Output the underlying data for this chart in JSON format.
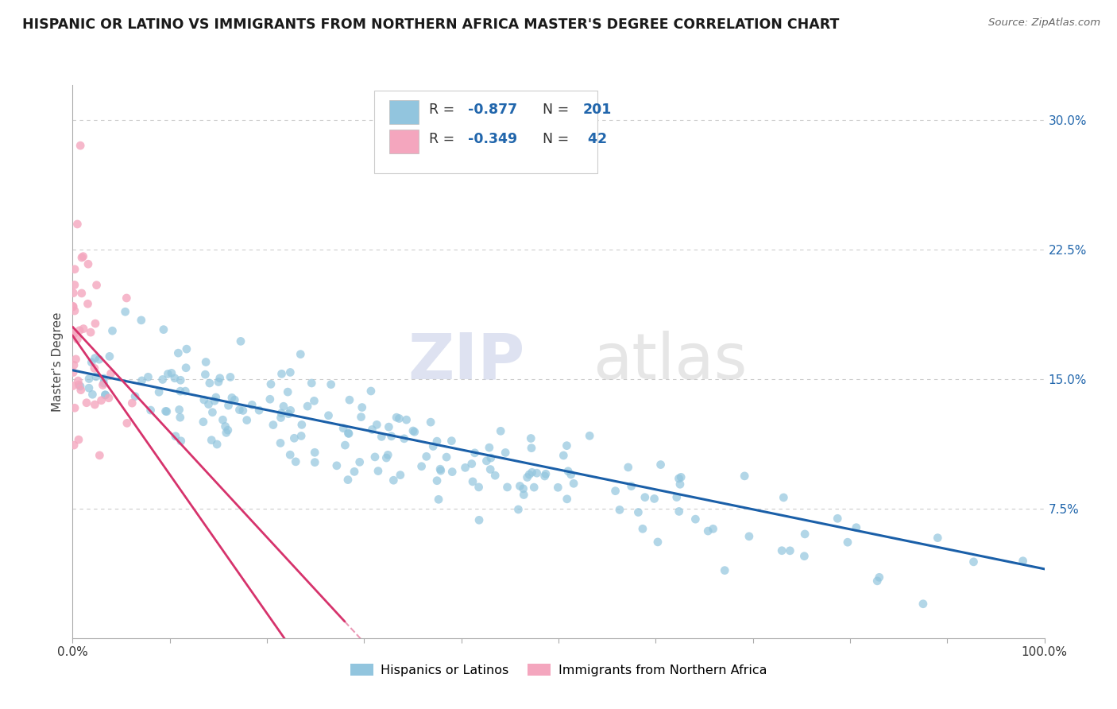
{
  "title": "HISPANIC OR LATINO VS IMMIGRANTS FROM NORTHERN AFRICA MASTER'S DEGREE CORRELATION CHART",
  "source": "Source: ZipAtlas.com",
  "ylabel": "Master's Degree",
  "y_ticks": [
    "7.5%",
    "15.0%",
    "22.5%",
    "30.0%"
  ],
  "y_tick_vals": [
    0.075,
    0.15,
    0.225,
    0.3
  ],
  "blue_color": "#92c5de",
  "pink_color": "#f4a6be",
  "blue_line_color": "#1a5fa8",
  "pink_line_color": "#d6336c",
  "blue_R": -0.877,
  "blue_N": 201,
  "pink_R": -0.349,
  "pink_N": 42,
  "xlim": [
    0.0,
    1.0
  ],
  "ylim": [
    0.0,
    0.32
  ],
  "title_color": "#1a1a1a",
  "title_fontsize": 12.5,
  "source_color": "#666666",
  "right_tick_color": "#2166ac",
  "grid_color": "#cccccc",
  "seed": 42
}
